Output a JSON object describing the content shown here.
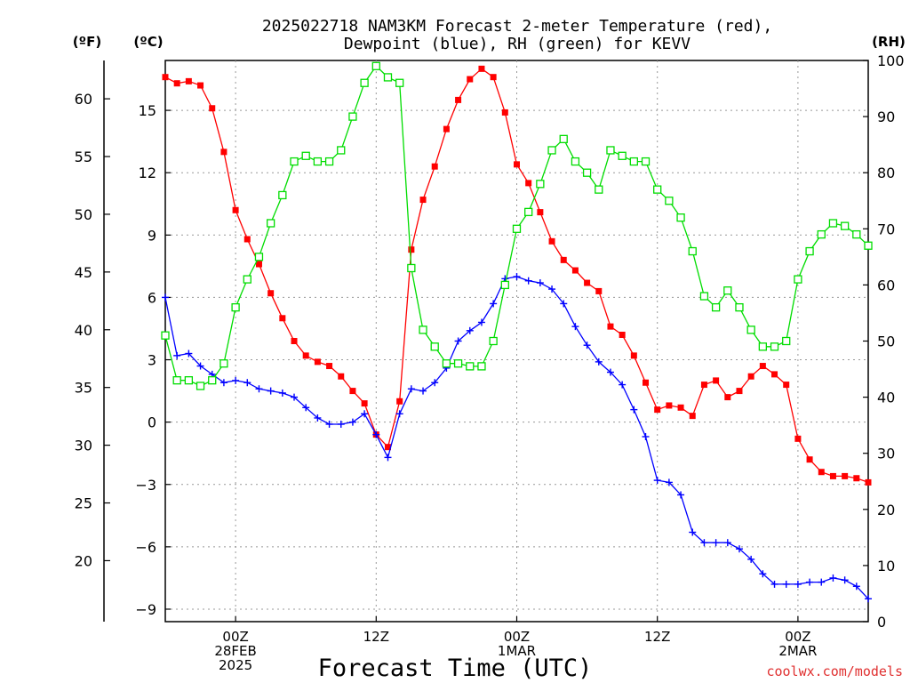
{
  "chart_data": {
    "type": "line",
    "title_line1": "2025022718 NAM3KM Forecast 2-meter Temperature (red),",
    "title_line2": "Dewpoint (blue), RH (green) for KEVV",
    "xlabel": "Forecast Time (UTC)",
    "credit": "coolwx.com/models",
    "axis_f_label": "(ºF)",
    "axis_c_label": "(ºC)",
    "axis_rh_label": "(RH)",
    "x_ticks": [
      {
        "hour": 6,
        "lines": [
          "00Z",
          "28FEB",
          "2025"
        ]
      },
      {
        "hour": 18,
        "lines": [
          "12Z"
        ]
      },
      {
        "hour": 30,
        "lines": [
          "00Z",
          "1MAR"
        ]
      },
      {
        "hour": 42,
        "lines": [
          "12Z"
        ]
      },
      {
        "hour": 54,
        "lines": [
          "00Z",
          "2MAR"
        ]
      }
    ],
    "x_range_hours": [
      0,
      60
    ],
    "c_ticks": [
      -9,
      -6,
      -3,
      0,
      3,
      6,
      9,
      12,
      15
    ],
    "c_tick_labels": [
      "−9",
      "−6",
      "−3",
      "0",
      "3",
      "6",
      "9",
      "12",
      "15"
    ],
    "c_range": [
      -9.6,
      17.4
    ],
    "f_ticks": [
      20,
      25,
      30,
      35,
      40,
      45,
      50,
      55,
      60
    ],
    "rh_ticks": [
      0,
      10,
      20,
      30,
      40,
      50,
      60,
      70,
      80,
      90,
      100
    ],
    "rh_range": [
      0,
      100
    ],
    "grid": true,
    "series": [
      {
        "name": "Temperature",
        "unit": "°C",
        "color": "#ff0000",
        "marker": "filled-square",
        "x": [
          0,
          1,
          2,
          3,
          4,
          5,
          6,
          7,
          8,
          9,
          10,
          11,
          12,
          13,
          14,
          15,
          16,
          17,
          18,
          19,
          20,
          21,
          22,
          23,
          24,
          25,
          26,
          27,
          28,
          29,
          30,
          31,
          32,
          33,
          34,
          35,
          36,
          37,
          38,
          39,
          40,
          41,
          42,
          43,
          44,
          45,
          46,
          47,
          48,
          49,
          50,
          51,
          52,
          53,
          54,
          55,
          56,
          57,
          58,
          59,
          60
        ],
        "values": [
          16.6,
          16.3,
          16.4,
          16.2,
          15.1,
          13.0,
          10.2,
          8.8,
          7.6,
          6.2,
          5.0,
          3.9,
          3.2,
          2.9,
          2.7,
          2.2,
          1.5,
          0.9,
          -0.6,
          -1.2,
          1.0,
          8.3,
          10.7,
          12.3,
          14.1,
          15.5,
          16.5,
          17.0,
          16.6,
          14.9,
          12.4,
          11.5,
          10.1,
          8.7,
          7.8,
          7.3,
          6.7,
          6.3,
          4.6,
          4.2,
          3.2,
          1.9,
          0.6,
          0.8,
          0.7,
          0.3,
          1.8,
          2.0,
          1.2,
          1.5,
          2.2,
          2.7,
          2.3,
          1.8,
          -0.8,
          -1.8,
          -2.4,
          -2.6,
          -2.6,
          -2.7,
          -2.9
        ]
      },
      {
        "name": "Dewpoint",
        "unit": "°C",
        "color": "#0000ff",
        "marker": "plus",
        "x": [
          0,
          1,
          2,
          3,
          4,
          5,
          6,
          7,
          8,
          9,
          10,
          11,
          12,
          13,
          14,
          15,
          16,
          17,
          18,
          19,
          20,
          21,
          22,
          23,
          24,
          25,
          26,
          27,
          28,
          29,
          30,
          31,
          32,
          33,
          34,
          35,
          36,
          37,
          38,
          39,
          40,
          41,
          42,
          43,
          44,
          45,
          46,
          47,
          48,
          49,
          50,
          51,
          52,
          53,
          54,
          55,
          56,
          57,
          58,
          59,
          60
        ],
        "values": [
          6.0,
          3.2,
          3.3,
          2.7,
          2.3,
          1.9,
          2.0,
          1.9,
          1.6,
          1.5,
          1.4,
          1.2,
          0.7,
          0.2,
          -0.1,
          -0.1,
          0.0,
          0.4,
          -0.6,
          -1.7,
          0.4,
          1.6,
          1.5,
          1.9,
          2.6,
          3.9,
          4.4,
          4.8,
          5.7,
          6.9,
          7.0,
          6.8,
          6.7,
          6.4,
          5.7,
          4.6,
          3.7,
          2.9,
          2.4,
          1.8,
          0.6,
          -0.7,
          -2.8,
          -2.9,
          -3.5,
          -5.3,
          -5.8,
          -5.8,
          -5.8,
          -6.1,
          -6.6,
          -7.3,
          -7.8,
          -7.8,
          -7.8,
          -7.7,
          -7.7,
          -7.5,
          -7.6,
          -7.9,
          -8.5
        ]
      },
      {
        "name": "RH",
        "unit": "%",
        "color": "#00dd00",
        "marker": "open-square",
        "x": [
          0,
          1,
          2,
          3,
          4,
          5,
          6,
          7,
          8,
          9,
          10,
          11,
          12,
          13,
          14,
          15,
          16,
          17,
          18,
          19,
          20,
          21,
          22,
          23,
          24,
          25,
          26,
          27,
          28,
          29,
          30,
          31,
          32,
          33,
          34,
          35,
          36,
          37,
          38,
          39,
          40,
          41,
          42,
          43,
          44,
          45,
          46,
          47,
          48,
          49,
          50,
          51,
          52,
          53,
          54,
          55,
          56,
          57,
          58,
          59,
          60
        ],
        "values": [
          51,
          43,
          43,
          42,
          43,
          46,
          56,
          61,
          65,
          71,
          76,
          82,
          83,
          82,
          82,
          84,
          90,
          96,
          99,
          97,
          96,
          63,
          52,
          49,
          46,
          46,
          45.5,
          45.5,
          50,
          60,
          70,
          73,
          78,
          84,
          86,
          82,
          80,
          77,
          84,
          83,
          82,
          82,
          77,
          75,
          72,
          66,
          58,
          56,
          59,
          56,
          52,
          49,
          49,
          50,
          61,
          66,
          69,
          71,
          70.5,
          69,
          67
        ]
      }
    ]
  }
}
